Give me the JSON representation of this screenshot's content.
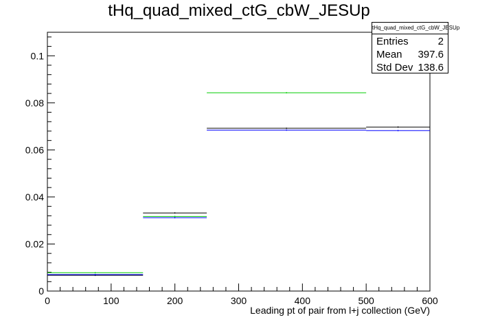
{
  "chart_data": {
    "type": "histogram",
    "title": "tHq_quad_mixed_ctG_cbW_JESUp",
    "xlabel": "Leading pt of pair from l+j collection (GeV)",
    "ylabel": "",
    "xlim": [
      0,
      600
    ],
    "ylim": [
      0,
      0.11
    ],
    "x_ticks": [
      "0",
      "100",
      "200",
      "300",
      "400",
      "500",
      "600"
    ],
    "y_ticks": [
      "0",
      "0.02",
      "0.04",
      "0.06",
      "0.08",
      "0.1"
    ],
    "bin_edges": [
      0,
      150,
      250,
      500,
      600
    ],
    "series": [
      {
        "color": "#000000",
        "values": [
          0.0067,
          0.0332,
          0.0692,
          0.0697
        ]
      },
      {
        "color": "#0000ff",
        "values": [
          0.007,
          0.0312,
          0.0684,
          0.0682
        ]
      },
      {
        "color": "#00cc00",
        "values": [
          0.0078,
          0.0317,
          0.0843,
          null
        ]
      }
    ],
    "stats": {
      "name": "tHq_quad_mixed_ctG_cbW_JESUp",
      "rows": [
        {
          "label": "Entries",
          "value": "2"
        },
        {
          "label": "Mean",
          "value": "397.6"
        },
        {
          "label": "Std Dev",
          "value": "138.6"
        }
      ]
    }
  }
}
